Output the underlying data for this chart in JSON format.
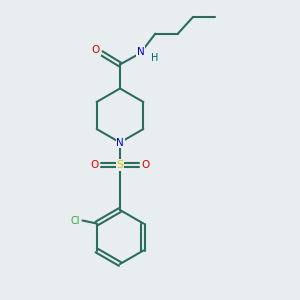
{
  "background_color": "#e8eef0",
  "bond_color": "#2d6e5a",
  "atom_colors": {
    "O": "#dd0000",
    "N": "#0000cc",
    "S": "#cccc00",
    "Cl": "#33aa33",
    "H": "#006666",
    "C": "#2d6e5a"
  },
  "line_width": 1.5,
  "figsize": [
    3.0,
    3.0
  ],
  "dpi": 100,
  "xlim": [
    0,
    10
  ],
  "ylim": [
    0,
    10
  ]
}
